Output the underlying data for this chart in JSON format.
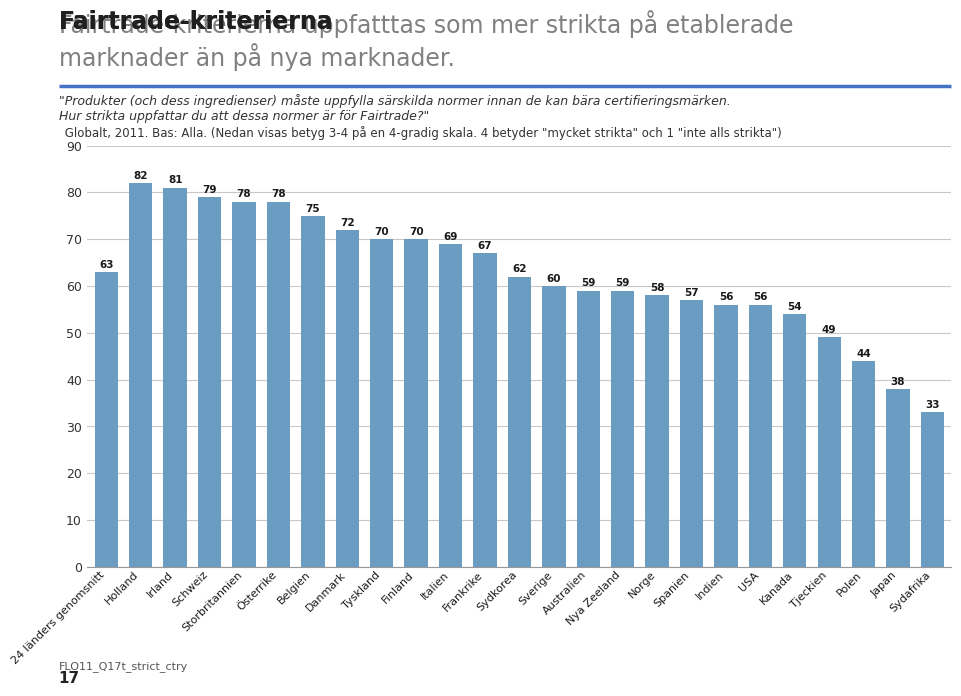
{
  "categories": [
    "24 länders genomsnitt",
    "Holland",
    "Irland",
    "Schweiz",
    "Storbritannien",
    "Österrike",
    "Belgien",
    "Danmark",
    "Tyskland",
    "Finland",
    "Italien",
    "Frankrike",
    "Sydkorea",
    "Sverige",
    "Australien",
    "Nya Zeeland",
    "Norge",
    "Spanien",
    "Indien",
    "USA",
    "Kanada",
    "Tjeckien",
    "Polen",
    "Japan",
    "Sydafrika"
  ],
  "values": [
    63,
    82,
    81,
    79,
    78,
    78,
    75,
    72,
    70,
    70,
    69,
    67,
    62,
    60,
    59,
    59,
    58,
    57,
    56,
    56,
    54,
    49,
    44,
    38,
    33
  ],
  "bar_color": "#6B9DC2",
  "title_bold": "Fairtrade-kriterierna",
  "title_rest_line1": " uppfatttas som mer strikta på etablerade",
  "title_rest_line2": "marknader än på nya marknader.",
  "subtitle_line1": "\"Produkter (och dess ingredienser) måste uppfylla särskilda normer innan de kan bära certifieringsmärken.",
  "subtitle_line2": "Hur strikta uppfattar du att dessa normer är för Fairtrade?\"",
  "subtitle_line3": " Globalt, 2011. Bas: Alla. (Nedan visas betyg 3-4 på en 4-gradig skala. 4 betyder \"mycket strikta\" och 1 \"inte alls strikta\")",
  "footer_left": "FLO11_Q17t_strict_ctry",
  "footer_page": "17",
  "ylim": [
    0,
    90
  ],
  "yticks": [
    0,
    10,
    20,
    30,
    40,
    50,
    60,
    70,
    80,
    90
  ],
  "background_color": "#FFFFFF",
  "separator_color": "#4472C4",
  "grid_color": "#C8C8C8",
  "title_bold_color": "#1F1F1F",
  "title_rest_color": "#808080",
  "subtitle_color": "#333333"
}
